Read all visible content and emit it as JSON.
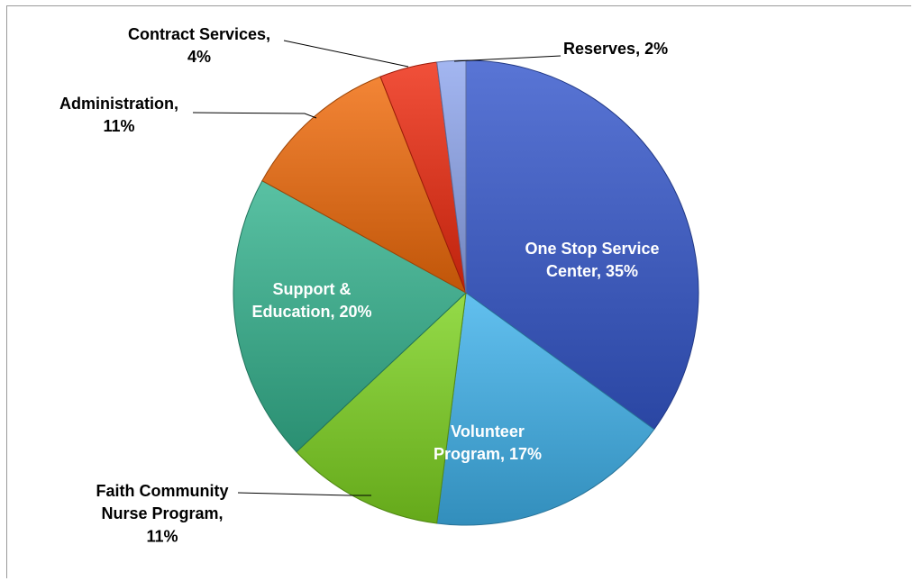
{
  "chart_data": {
    "type": "pie",
    "slices": [
      {
        "category": "One Stop Service Center",
        "value": 35,
        "label_lines": [
          "One Stop Service",
          "Center, 35%"
        ],
        "color": "#3557CC"
      },
      {
        "category": "Volunteer Program",
        "value": 17,
        "label_lines": [
          "Volunteer",
          "Program, 17%"
        ],
        "color": "#3FB2EB"
      },
      {
        "category": "Faith Community Nurse Program",
        "value": 11,
        "label_lines": [
          "Faith Community",
          "Nurse Program,",
          "11%"
        ],
        "color": "#7ED321"
      },
      {
        "category": "Support & Education",
        "value": 20,
        "label_lines": [
          "Support &",
          "Education, 20%"
        ],
        "color": "#34B38F"
      },
      {
        "category": "Administration",
        "value": 11,
        "label_lines": [
          "Administration,",
          "11%"
        ],
        "color": "#F06A0A"
      },
      {
        "category": "Contract Services",
        "value": 4,
        "label_lines": [
          "Contract Services,",
          "4%"
        ],
        "color": "#EE2A0F"
      },
      {
        "category": "Reserves",
        "value": 2,
        "label_lines": [
          "Reserves, 2%"
        ],
        "color": "#8FA6EE"
      }
    ],
    "data_labels": "category, percent",
    "legend": "none"
  }
}
